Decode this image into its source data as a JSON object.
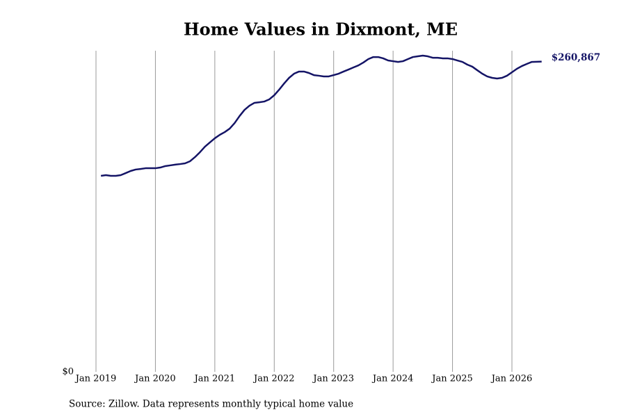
{
  "chart_data": {
    "type": "line",
    "title": "Home Values in Dixmont, ME",
    "source": "Source: Zillow. Data represents monthly typical home value",
    "color": "#141466",
    "x": [
      "2019-02",
      "2019-03",
      "2019-04",
      "2019-05",
      "2019-06",
      "2019-07",
      "2019-08",
      "2019-09",
      "2019-10",
      "2019-11",
      "2019-12",
      "2020-01",
      "2020-02",
      "2020-03",
      "2020-04",
      "2020-05",
      "2020-06",
      "2020-07",
      "2020-08",
      "2020-09",
      "2020-10",
      "2020-11",
      "2020-12",
      "2021-01",
      "2021-02",
      "2021-03",
      "2021-04",
      "2021-05",
      "2021-06",
      "2021-07",
      "2021-08",
      "2021-09",
      "2021-10",
      "2021-11",
      "2021-12",
      "2022-01",
      "2022-02",
      "2022-03",
      "2022-04",
      "2022-05",
      "2022-06",
      "2022-07",
      "2022-08",
      "2022-09",
      "2022-10",
      "2022-11",
      "2022-12",
      "2023-01",
      "2023-02",
      "2023-03",
      "2023-04",
      "2023-05",
      "2023-06",
      "2023-07",
      "2023-08",
      "2023-09",
      "2023-10",
      "2023-11",
      "2023-12",
      "2024-01",
      "2024-02",
      "2024-03",
      "2024-04",
      "2024-05",
      "2024-06",
      "2024-07",
      "2024-08",
      "2024-09",
      "2024-10",
      "2024-11",
      "2024-12",
      "2025-01",
      "2025-02",
      "2025-03",
      "2025-04",
      "2025-05",
      "2025-06",
      "2025-07",
      "2025-08",
      "2025-09",
      "2025-10",
      "2025-11",
      "2025-12",
      "2026-01",
      "2026-02",
      "2026-03",
      "2026-04",
      "2026-05",
      "2026-06",
      "2026-07"
    ],
    "values": [
      164800,
      165400,
      164800,
      164800,
      165400,
      167100,
      168900,
      170100,
      170600,
      171200,
      171200,
      171200,
      171800,
      173000,
      173600,
      174200,
      174700,
      175300,
      177100,
      180600,
      184700,
      189300,
      192900,
      196400,
      199300,
      201600,
      204500,
      209200,
      215100,
      220300,
      223800,
      226200,
      226700,
      227300,
      229100,
      232600,
      237300,
      242500,
      247200,
      250700,
      252500,
      252500,
      251300,
      249500,
      249000,
      248400,
      248400,
      249500,
      250700,
      252500,
      254200,
      256000,
      257700,
      260100,
      263000,
      264700,
      264700,
      263600,
      261800,
      261200,
      260600,
      261200,
      263000,
      264700,
      265300,
      265900,
      265300,
      264100,
      264100,
      263600,
      263600,
      263000,
      261800,
      260600,
      258300,
      256600,
      253600,
      250700,
      248400,
      247200,
      246600,
      247200,
      249000,
      251900,
      254800,
      257100,
      258900,
      260600,
      260700,
      260867
    ],
    "value_labels": [
      null,
      null,
      null,
      null,
      null,
      null,
      null,
      null,
      null,
      null,
      null,
      null,
      null,
      null,
      null,
      null,
      null,
      null,
      null,
      null,
      null,
      null,
      null,
      null,
      null,
      null,
      null,
      null,
      null,
      null,
      null,
      null,
      null,
      null,
      null,
      null,
      null,
      null,
      null,
      null,
      null,
      null,
      null,
      null,
      null,
      null,
      null,
      null,
      null,
      null,
      null,
      null,
      null,
      null,
      null,
      null,
      null,
      null,
      null,
      null,
      null,
      null,
      null,
      null,
      null,
      null,
      null,
      null,
      null,
      null,
      null,
      null,
      null,
      null,
      null,
      null,
      null,
      null,
      null,
      null,
      null,
      null,
      null,
      null,
      null,
      null,
      null,
      null,
      null,
      "$260,867"
    ],
    "xticks": [
      {
        "value": "2019-01",
        "label": "Jan 2019"
      },
      {
        "value": "2020-01",
        "label": "Jan 2020"
      },
      {
        "value": "2021-01",
        "label": "Jan 2021"
      },
      {
        "value": "2022-01",
        "label": "Jan 2022"
      },
      {
        "value": "2023-01",
        "label": "Jan 2023"
      },
      {
        "value": "2024-01",
        "label": "Jan 2024"
      },
      {
        "value": "2025-01",
        "label": "Jan 2025"
      },
      {
        "value": "2026-01",
        "label": "Jan 2026"
      }
    ],
    "ylim": [
      0,
      270000
    ],
    "yticks": [
      {
        "value": 0,
        "label": "$0"
      }
    ],
    "grid": true
  }
}
